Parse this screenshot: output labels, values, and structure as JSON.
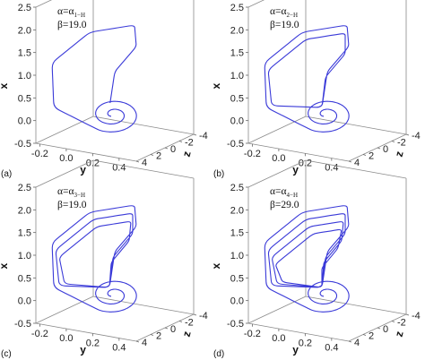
{
  "chart_data": [
    {
      "type": "line",
      "panel_label": "(a)",
      "annotation": {
        "alpha_main": "α=α",
        "alpha_sub": "1−H",
        "beta": "β=19.0"
      },
      "xlabel": "y",
      "ylabel": "x",
      "zlabel": "z",
      "xlim": [
        -0.3,
        0.4
      ],
      "ylim": [
        -0.5,
        2.5
      ],
      "zlim": [
        -4,
        4
      ],
      "ytick_labels": [
        "-0.5",
        "0.0",
        "0.5",
        "1.0",
        "1.5",
        "2.0",
        "2.5"
      ],
      "xtick_labels": [
        "-0.2",
        "0.0",
        "0.2",
        "0.4"
      ],
      "ztick_labels": [
        "-4",
        "-2",
        "0",
        "2",
        "4"
      ],
      "loops": 1
    },
    {
      "type": "line",
      "panel_label": "(b)",
      "annotation": {
        "alpha_main": "α=α",
        "alpha_sub": "2−H",
        "beta": "β=19.0"
      },
      "xlabel": "y",
      "ylabel": "x",
      "zlabel": "z",
      "xlim": [
        -0.3,
        0.4
      ],
      "ylim": [
        -0.5,
        2.5
      ],
      "zlim": [
        -4,
        4
      ],
      "ytick_labels": [
        "-0.5",
        "0.0",
        "0.5",
        "1.0",
        "1.5",
        "2.0",
        "2.5"
      ],
      "xtick_labels": [
        "-0.2",
        "0.0",
        "0.2",
        "0.4"
      ],
      "ztick_labels": [
        "-4",
        "-2",
        "0",
        "2",
        "4"
      ],
      "loops": 2
    },
    {
      "type": "line",
      "panel_label": "(c)",
      "annotation": {
        "alpha_main": "α=α",
        "alpha_sub": "3−H",
        "beta": "β=19.0"
      },
      "xlabel": "y",
      "ylabel": "x",
      "zlabel": "z",
      "xlim": [
        -0.3,
        0.4
      ],
      "ylim": [
        -0.5,
        2.5
      ],
      "zlim": [
        -4,
        4
      ],
      "ytick_labels": [
        "-0.5",
        "0.0",
        "0.5",
        "1.0",
        "1.5",
        "2.0",
        "2.5"
      ],
      "xtick_labels": [
        "-0.2",
        "0.0",
        "0.2",
        "0.4"
      ],
      "ztick_labels": [
        "-4",
        "-2",
        "0",
        "2",
        "4"
      ],
      "loops": 3
    },
    {
      "type": "line",
      "panel_label": "(d)",
      "annotation": {
        "alpha_main": "α=α",
        "alpha_sub": "4−H",
        "beta": "β=29.0"
      },
      "xlabel": "y",
      "ylabel": "x",
      "zlabel": "z",
      "xlim": [
        -0.3,
        0.4
      ],
      "ylim": [
        -0.5,
        2.5
      ],
      "zlim": [
        -4,
        4
      ],
      "ytick_labels": [
        "-0.5",
        "0.0",
        "0.5",
        "1.0",
        "1.5",
        "2.0",
        "2.5"
      ],
      "xtick_labels": [
        "-0.2",
        "0.0",
        "0.2",
        "0.4"
      ],
      "ztick_labels": [
        "-4",
        "-2",
        "0",
        "2",
        "4"
      ],
      "loops": 4
    }
  ],
  "colors": {
    "trajectory": "#3a3ad8",
    "box": "#8a8a8a"
  }
}
